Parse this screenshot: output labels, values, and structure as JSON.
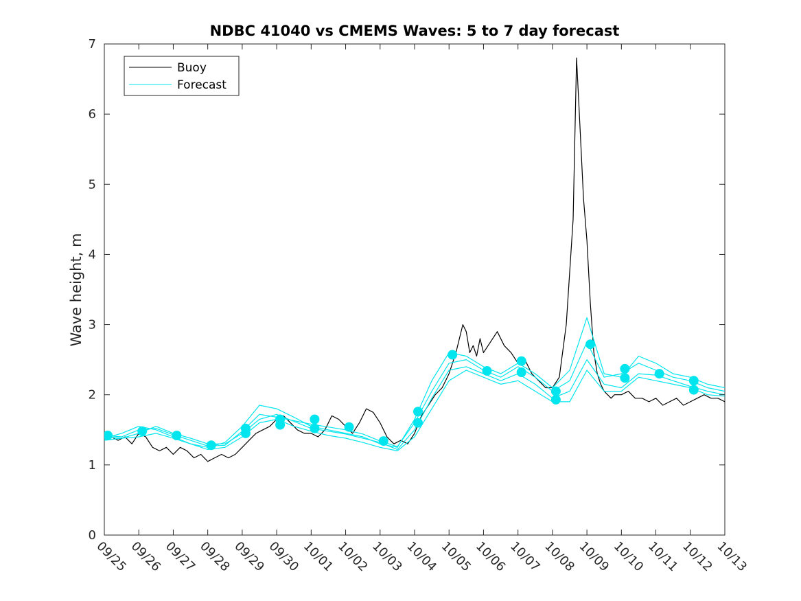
{
  "chart_data": {
    "type": "line",
    "title": "NDBC 41040 vs CMEMS Waves: 5 to 7 day forecast",
    "xlabel": "",
    "ylabel": "Wave height, m",
    "xlim": [
      "09/25",
      "10/13"
    ],
    "ylim": [
      0,
      7
    ],
    "yticks": [
      0,
      1,
      2,
      3,
      4,
      5,
      6,
      7
    ],
    "xticks": [
      "09/25",
      "09/26",
      "09/27",
      "09/28",
      "09/29",
      "09/30",
      "10/01",
      "10/02",
      "10/03",
      "10/04",
      "10/05",
      "10/06",
      "10/07",
      "10/08",
      "10/09",
      "10/10",
      "10/11",
      "10/12",
      "10/13"
    ],
    "legend_position": "top-left",
    "grid": false,
    "colors": {
      "buoy": "#000000",
      "forecast": "#00e5ee",
      "axis": "#262626"
    },
    "series": [
      {
        "name": "Buoy",
        "color": "#000000",
        "x": [
          0,
          0.2,
          0.4,
          0.6,
          0.8,
          1.0,
          1.2,
          1.4,
          1.6,
          1.8,
          2.0,
          2.2,
          2.4,
          2.6,
          2.8,
          3.0,
          3.2,
          3.4,
          3.6,
          3.8,
          4.0,
          4.2,
          4.4,
          4.6,
          4.8,
          5.0,
          5.2,
          5.4,
          5.6,
          5.8,
          6.0,
          6.2,
          6.4,
          6.6,
          6.8,
          7.0,
          7.2,
          7.4,
          7.6,
          7.8,
          8.0,
          8.2,
          8.4,
          8.6,
          8.8,
          9.0,
          9.2,
          9.4,
          9.6,
          9.8,
          10.0,
          10.2,
          10.3,
          10.4,
          10.5,
          10.6,
          10.7,
          10.8,
          10.9,
          11.0,
          11.2,
          11.4,
          11.6,
          11.8,
          12.0,
          12.2,
          12.4,
          12.6,
          12.8,
          13.0,
          13.2,
          13.4,
          13.6,
          13.7,
          13.8,
          13.9,
          14.0,
          14.1,
          14.2,
          14.3,
          14.4,
          14.5,
          14.6,
          14.7,
          14.8,
          15.0,
          15.2,
          15.4,
          15.6,
          15.8,
          16.0,
          16.2,
          16.4,
          16.6,
          16.8,
          17.0,
          17.2,
          17.4,
          17.6,
          17.8,
          18.0
        ],
        "values": [
          1.45,
          1.4,
          1.35,
          1.4,
          1.3,
          1.45,
          1.4,
          1.25,
          1.2,
          1.25,
          1.15,
          1.25,
          1.2,
          1.1,
          1.15,
          1.05,
          1.1,
          1.15,
          1.1,
          1.15,
          1.25,
          1.35,
          1.45,
          1.5,
          1.55,
          1.65,
          1.7,
          1.6,
          1.5,
          1.45,
          1.45,
          1.4,
          1.5,
          1.7,
          1.65,
          1.55,
          1.45,
          1.6,
          1.8,
          1.75,
          1.6,
          1.4,
          1.3,
          1.35,
          1.3,
          1.45,
          1.7,
          1.85,
          2.0,
          2.1,
          2.3,
          2.6,
          2.8,
          3.0,
          2.9,
          2.6,
          2.7,
          2.55,
          2.8,
          2.6,
          2.75,
          2.9,
          2.7,
          2.6,
          2.45,
          2.5,
          2.3,
          2.2,
          2.1,
          2.1,
          2.25,
          3.0,
          4.5,
          6.8,
          5.8,
          4.8,
          4.2,
          3.3,
          2.6,
          2.3,
          2.15,
          2.05,
          2.0,
          1.95,
          2.0,
          2.0,
          2.05,
          1.95,
          1.95,
          1.9,
          1.95,
          1.85,
          1.9,
          1.95,
          1.85,
          1.9,
          1.95,
          2.0,
          1.95,
          1.95,
          1.9
        ]
      },
      {
        "name": "Forecast",
        "color": "#00e5ee",
        "x": [
          0,
          0.5,
          1.0,
          1.5,
          2.0,
          2.5,
          3.0,
          3.5,
          4.0,
          4.5,
          5.0,
          5.5,
          6.0,
          6.5,
          7.0,
          7.5,
          8.0,
          8.5,
          9.0,
          9.5,
          10.0,
          10.5,
          11.0,
          11.5,
          12.0,
          12.5,
          13.0,
          13.5,
          14.0,
          14.5,
          15.0,
          15.5,
          16.0,
          16.5,
          17.0,
          17.5,
          18.0
        ],
        "values": [
          1.42,
          1.4,
          1.5,
          1.52,
          1.43,
          1.35,
          1.27,
          1.28,
          1.48,
          1.72,
          1.68,
          1.63,
          1.58,
          1.54,
          1.5,
          1.44,
          1.34,
          1.26,
          1.6,
          2.05,
          2.45,
          2.5,
          2.35,
          2.25,
          2.4,
          2.25,
          2.05,
          2.2,
          2.75,
          2.25,
          2.3,
          2.45,
          2.35,
          2.25,
          2.2,
          2.1,
          2.05
        ]
      },
      {
        "x": [
          0,
          0.5,
          1.0,
          1.5,
          2.0,
          2.5,
          3.0,
          3.5,
          4.0,
          4.5,
          5.0,
          5.5,
          6.0,
          6.5,
          7.0,
          7.5,
          8.0,
          8.5,
          9.0,
          9.5,
          10.0,
          10.5,
          11.0,
          11.5,
          12.0,
          12.5,
          13.0,
          13.5,
          14.0,
          14.5,
          15.0,
          15.5,
          16.0,
          16.5,
          17.0,
          17.5,
          18.0
        ],
        "values": [
          1.38,
          1.45,
          1.55,
          1.5,
          1.4,
          1.3,
          1.25,
          1.32,
          1.55,
          1.85,
          1.8,
          1.68,
          1.55,
          1.5,
          1.45,
          1.4,
          1.3,
          1.25,
          1.65,
          2.2,
          2.6,
          2.55,
          2.4,
          2.3,
          2.45,
          2.3,
          2.1,
          2.35,
          3.1,
          2.3,
          2.25,
          2.55,
          2.45,
          2.3,
          2.25,
          2.15,
          2.1
        ]
      },
      {
        "x": [
          0,
          0.5,
          1.0,
          1.5,
          2.0,
          2.5,
          3.0,
          3.5,
          4.0,
          4.5,
          5.0,
          5.5,
          6.0,
          6.5,
          7.0,
          7.5,
          8.0,
          8.5,
          9.0,
          9.5,
          10.0,
          10.5,
          11.0,
          11.5,
          12.0,
          12.5,
          13.0,
          13.5,
          14.0,
          14.5,
          15.0,
          15.5,
          16.0,
          16.5,
          17.0,
          17.5,
          18.0
        ],
        "values": [
          1.4,
          1.38,
          1.45,
          1.55,
          1.45,
          1.38,
          1.3,
          1.3,
          1.45,
          1.65,
          1.72,
          1.62,
          1.52,
          1.48,
          1.44,
          1.38,
          1.32,
          1.22,
          1.5,
          1.95,
          2.35,
          2.4,
          2.3,
          2.2,
          2.3,
          2.15,
          1.95,
          2.05,
          2.5,
          2.15,
          2.1,
          2.3,
          2.28,
          2.2,
          2.12,
          2.05,
          2.0
        ]
      },
      {
        "x": [
          0,
          0.5,
          1.0,
          1.5,
          2.0,
          2.5,
          3.0,
          3.5,
          4.0,
          4.5,
          5.0,
          5.5,
          6.0,
          6.5,
          7.0,
          7.5,
          8.0,
          8.5,
          9.0,
          9.5,
          10.0,
          10.5,
          11.0,
          11.5,
          12.0,
          12.5,
          13.0,
          13.5,
          14.0,
          14.5,
          15.0,
          15.5,
          16.0,
          16.5,
          17.0,
          17.5,
          18.0
        ],
        "values": [
          1.35,
          1.38,
          1.4,
          1.45,
          1.38,
          1.3,
          1.22,
          1.25,
          1.4,
          1.6,
          1.65,
          1.55,
          1.48,
          1.42,
          1.38,
          1.32,
          1.25,
          1.2,
          1.4,
          1.8,
          2.2,
          2.35,
          2.25,
          2.15,
          2.2,
          2.05,
          1.9,
          1.9,
          2.35,
          2.05,
          2.05,
          2.25,
          2.2,
          2.15,
          2.1,
          2.0,
          1.98
        ]
      }
    ],
    "forecast_markers": {
      "color": "#00e5ee",
      "x": [
        0.1,
        1.1,
        2.1,
        3.1,
        4.1,
        4.1,
        5.1,
        5.1,
        6.1,
        6.1,
        7.1,
        8.1,
        9.1,
        9.1,
        10.1,
        11.1,
        12.1,
        12.1,
        13.1,
        13.1,
        14.1,
        15.1,
        15.1,
        16.1,
        17.1,
        17.1
      ],
      "values": [
        1.42,
        1.48,
        1.42,
        1.28,
        1.52,
        1.45,
        1.65,
        1.57,
        1.65,
        1.52,
        1.54,
        1.34,
        1.76,
        1.6,
        2.57,
        2.34,
        2.48,
        2.32,
        2.05,
        1.93,
        2.72,
        2.37,
        2.24,
        2.3,
        2.2,
        2.07
      ]
    }
  }
}
